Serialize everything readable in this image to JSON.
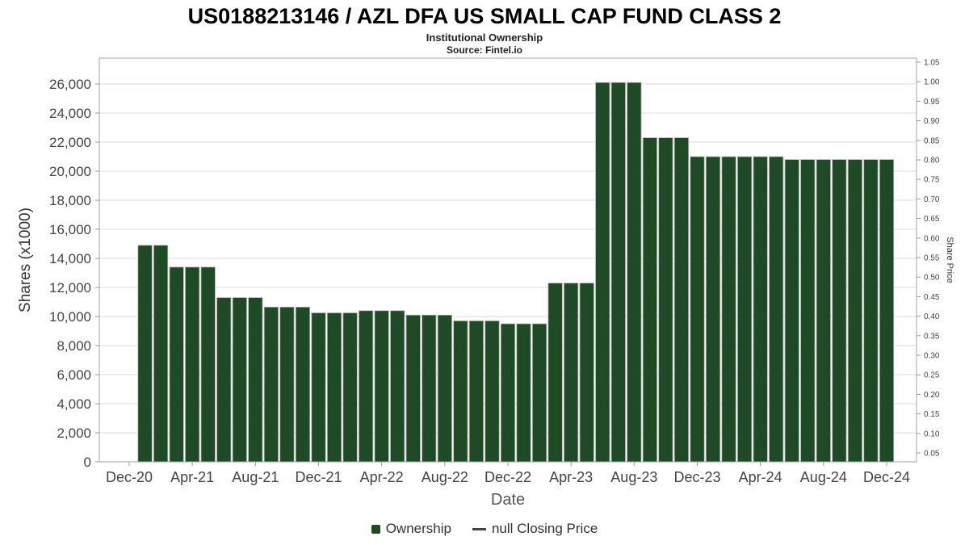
{
  "header": {
    "title": "US0188213146 / AZL DFA US SMALL CAP FUND CLASS 2",
    "subtitle": "Institutional Ownership",
    "source": "Source: Fintel.io"
  },
  "chart_data": {
    "type": "bar",
    "title": "US0188213146 / AZL DFA US SMALL CAP FUND CLASS 2",
    "subtitle": "Institutional Ownership",
    "source": "Source: Fintel.io",
    "xlabel": "Date",
    "ylabel_left": "Shares (x1000)",
    "ylabel_right": "Share Price",
    "x_tick_labels": [
      "Dec-20",
      "Apr-21",
      "Aug-21",
      "Dec-21",
      "Apr-22",
      "Aug-22",
      "Dec-22",
      "Apr-23",
      "Aug-23",
      "Dec-23",
      "Apr-24",
      "Aug-24",
      "Dec-24"
    ],
    "left_axis": {
      "min": 0,
      "max": 26000,
      "step": 2000,
      "unit": "shares_x1000"
    },
    "right_axis": {
      "min": 0.05,
      "max": 1.05,
      "step": 0.05
    },
    "grid": "horizontal",
    "legend_position": "bottom",
    "legend": [
      "Ownership",
      "null Closing Price"
    ],
    "series": [
      {
        "name": "Ownership",
        "type": "bar",
        "color": "#1e4a26",
        "months": [
          "Jan-21",
          "Feb-21",
          "Mar-21",
          "Apr-21",
          "May-21",
          "Jun-21",
          "Jul-21",
          "Aug-21",
          "Sep-21",
          "Oct-21",
          "Nov-21",
          "Dec-21",
          "Jan-22",
          "Feb-22",
          "Mar-22",
          "Apr-22",
          "May-22",
          "Jun-22",
          "Jul-22",
          "Aug-22",
          "Sep-22",
          "Oct-22",
          "Nov-22",
          "Dec-22",
          "Jan-23",
          "Feb-23",
          "Mar-23",
          "Apr-23",
          "May-23",
          "Jun-23",
          "Jul-23",
          "Aug-23",
          "Sep-23",
          "Oct-23",
          "Nov-23",
          "Dec-23",
          "Jan-24",
          "Feb-24",
          "Mar-24",
          "Apr-24",
          "May-24",
          "Jun-24",
          "Jul-24",
          "Aug-24",
          "Sep-24",
          "Oct-24",
          "Nov-24",
          "Dec-24"
        ],
        "values": [
          14900,
          14900,
          13400,
          13400,
          13400,
          11300,
          11300,
          11300,
          10650,
          10650,
          10650,
          10250,
          10250,
          10250,
          10400,
          10400,
          10400,
          10100,
          10100,
          10100,
          9700,
          9700,
          9700,
          9500,
          9500,
          9500,
          12300,
          12300,
          12300,
          26100,
          26100,
          26100,
          22300,
          22300,
          22300,
          21000,
          21000,
          21000,
          21000,
          21000,
          21000,
          20800,
          20800,
          20800,
          20800,
          20800,
          20800,
          20800
        ]
      },
      {
        "name": "null Closing Price",
        "type": "line",
        "color": "#444444",
        "values": []
      }
    ]
  }
}
